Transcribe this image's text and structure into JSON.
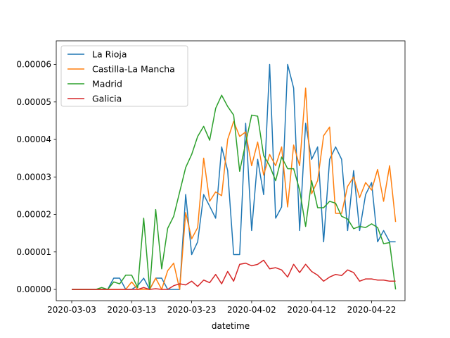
{
  "chart_data": {
    "type": "line",
    "xlabel": "datetime",
    "ylabel": "",
    "title": "",
    "x_start": "2020-03-03",
    "x_end": "2020-04-25",
    "xlim": [
      "2020-03-03",
      "2020-04-25"
    ],
    "ylim": [
      -3e-06,
      6.63e-05
    ],
    "x_ticks": [
      "2020-03-03",
      "2020-03-13",
      "2020-03-23",
      "2020-04-02",
      "2020-04-12",
      "2020-04-22"
    ],
    "y_ticks": [
      0,
      1e-05,
      2e-05,
      3e-05,
      4e-05,
      5e-05,
      6e-05
    ],
    "y_tick_labels": [
      "0.00000",
      "0.00001",
      "0.00002",
      "0.00003",
      "0.00004",
      "0.00005",
      "0.00006"
    ],
    "legend": "top-left",
    "grid": false,
    "series": [
      {
        "name": "La Rioja",
        "color": "#1f77b4",
        "values": [
          0,
          0,
          0,
          0,
          0,
          0,
          0,
          3e-06,
          3e-06,
          0,
          0,
          1e-06,
          3e-06,
          0,
          3e-06,
          3e-06,
          0,
          0,
          0,
          2.53e-05,
          9.3e-06,
          1.27e-05,
          2.53e-05,
          2.22e-05,
          1.9e-05,
          3.8e-05,
          3.17e-05,
          9.3e-06,
          9.3e-06,
          4.43e-05,
          1.57e-05,
          3.47e-05,
          2.53e-05,
          6e-05,
          1.9e-05,
          2.2e-05,
          6e-05,
          5.37e-05,
          1.57e-05,
          4.43e-05,
          3.47e-05,
          3.8e-05,
          1.27e-05,
          3.47e-05,
          3.8e-05,
          3.47e-05,
          1.57e-05,
          3.17e-05,
          1.57e-05,
          2.53e-05,
          2.85e-05,
          1.27e-05,
          1.57e-05,
          1.27e-05,
          1.27e-05
        ]
      },
      {
        "name": "Castilla-La Mancha",
        "color": "#ff7f0e",
        "values": [
          0,
          0,
          0,
          0,
          0,
          0,
          0,
          0,
          0,
          0,
          2e-06,
          0,
          0,
          0,
          3e-06,
          0,
          5e-06,
          7e-06,
          0,
          2.05e-05,
          1.35e-05,
          1.65e-05,
          3.5e-05,
          2.35e-05,
          2.6e-05,
          2.5e-05,
          4e-05,
          4.48e-05,
          4.08e-05,
          4.2e-05,
          3.3e-05,
          3.93e-05,
          3.05e-05,
          3.6e-05,
          3.3e-05,
          3.8e-05,
          2.2e-05,
          3.85e-05,
          3.3e-05,
          5.37e-05,
          2.55e-05,
          2.9e-05,
          4.1e-05,
          4.33e-05,
          2.03e-05,
          2.03e-05,
          2.75e-05,
          3e-05,
          2.45e-05,
          2.85e-05,
          2.65e-05,
          3.2e-05,
          2.35e-05,
          3.3e-05,
          1.8e-05
        ]
      },
      {
        "name": "Madrid",
        "color": "#2ca02c",
        "values": [
          0,
          0,
          0,
          0,
          0,
          5e-07,
          0,
          2e-06,
          1.5e-06,
          3.8e-06,
          3.8e-06,
          5e-07,
          1.9e-05,
          0,
          2.13e-05,
          5.5e-06,
          1.63e-05,
          1.95e-05,
          2.6e-05,
          3.25e-05,
          3.6e-05,
          4.08e-05,
          4.35e-05,
          3.98e-05,
          4.83e-05,
          5.18e-05,
          4.88e-05,
          4.65e-05,
          3.15e-05,
          3.9e-05,
          4.65e-05,
          4.62e-05,
          3.57e-05,
          3.3e-05,
          2.9e-05,
          3.53e-05,
          3.22e-05,
          3.22e-05,
          2.65e-05,
          1.68e-05,
          2.9e-05,
          2.18e-05,
          2.18e-05,
          2.35e-05,
          2.3e-05,
          1.95e-05,
          1.88e-05,
          1.62e-05,
          1.68e-05,
          1.65e-05,
          1.75e-05,
          1.65e-05,
          1.22e-05,
          1.25e-05,
          0
        ]
      },
      {
        "name": "Galicia",
        "color": "#d62728",
        "values": [
          0,
          0,
          0,
          0,
          0,
          0,
          0,
          0,
          0,
          0,
          0,
          0,
          5e-07,
          0,
          2e-07,
          0,
          0,
          1e-06,
          1.5e-06,
          1.2e-06,
          2.2e-06,
          8e-07,
          2.5e-06,
          1.8e-06,
          4e-06,
          1.5e-06,
          4.8e-06,
          2.2e-06,
          6.7e-06,
          7e-06,
          6.3e-06,
          6.7e-06,
          7.8e-06,
          5.5e-06,
          5.8e-06,
          5.2e-06,
          3.3e-06,
          6.7e-06,
          4.5e-06,
          6.7e-06,
          4.8e-06,
          3.8e-06,
          2.2e-06,
          3.3e-06,
          4e-06,
          3.7e-06,
          5.2e-06,
          4.5e-06,
          2.2e-06,
          2.8e-06,
          2.8e-06,
          2.5e-06,
          2.5e-06,
          2.2e-06,
          2.2e-06
        ]
      }
    ]
  }
}
